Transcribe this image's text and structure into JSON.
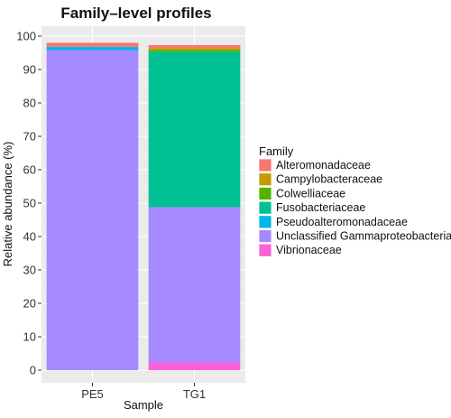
{
  "chart_data": {
    "type": "bar",
    "stacked": true,
    "title": "Family–level profiles",
    "xlabel": "Sample",
    "ylabel": "Relative abundance (%)",
    "categories": [
      "PE5",
      "TG1"
    ],
    "ylim": [
      0,
      100
    ],
    "yticks": [
      0,
      10,
      20,
      30,
      40,
      50,
      60,
      70,
      80,
      90,
      100
    ],
    "grid": true,
    "legend_title": "Family",
    "legend_position": "right",
    "stack_order_bottom_to_top": [
      "Vibrionaceae",
      "Unclassified Gammaproteobacteria",
      "Pseudoalteromonadaceae",
      "Fusobacteriaceae",
      "Colwelliaceae",
      "Campylobacteraceae",
      "Alteromonadaceae"
    ],
    "series": [
      {
        "name": "Alteromonadaceae",
        "color": "#F8766D",
        "values": [
          1.2,
          0.9
        ]
      },
      {
        "name": "Campylobacteraceae",
        "color": "#C49A00",
        "values": [
          0.0,
          0.5
        ]
      },
      {
        "name": "Colwelliaceae",
        "color": "#53B400",
        "values": [
          0.0,
          0.6
        ]
      },
      {
        "name": "Fusobacteriaceae",
        "color": "#00C094",
        "values": [
          0.0,
          46.5
        ]
      },
      {
        "name": "Pseudoalteromonadaceae",
        "color": "#00B6EB",
        "values": [
          1.0,
          0.0
        ]
      },
      {
        "name": "Unclassified Gammaproteobacteria",
        "color": "#A58AFF",
        "values": [
          95.8,
          46.5
        ]
      },
      {
        "name": "Vibrionaceae",
        "color": "#FB61D7",
        "values": [
          0.0,
          2.3
        ]
      }
    ]
  }
}
